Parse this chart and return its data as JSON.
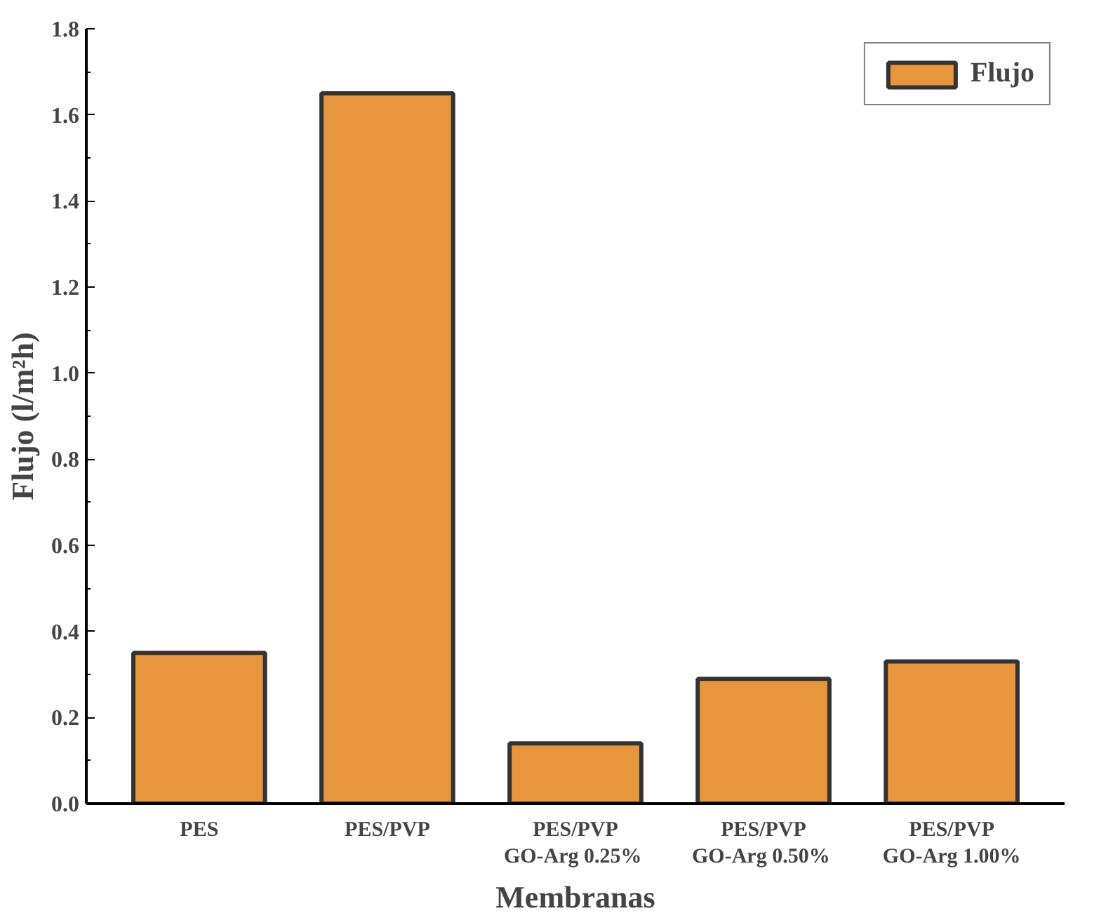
{
  "chart_data": {
    "type": "bar",
    "xlabel": "Membranas",
    "ylabel": "Flujo (l/m²h)",
    "categories": [
      "PES",
      "PES/PVP",
      "PES/PVP\nGO-Arg  0.25%",
      "PES/PVP\nGO-Arg  0.50%",
      "PES/PVP\nGO-Arg 1.00%"
    ],
    "series": [
      {
        "name": "Flujo",
        "color": "#e8963e",
        "values": [
          0.35,
          1.65,
          0.14,
          0.29,
          0.33
        ]
      }
    ],
    "ylim": [
      0,
      1.8
    ],
    "yticks": [
      {
        "value": 0,
        "label": "0.0"
      },
      0.2,
      0.4,
      0.6,
      0.8,
      {
        "value": 1,
        "label": "1.0"
      },
      1.2,
      1.4,
      1.6,
      1.8
    ],
    "grid": false,
    "legend": "top right"
  }
}
